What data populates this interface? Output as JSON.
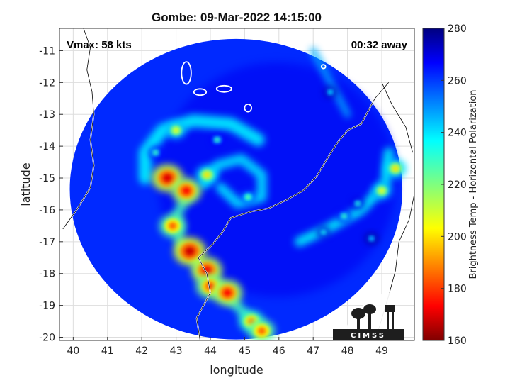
{
  "chart_data": {
    "type": "heatmap",
    "title": "Gombe: 09-Mar-2022 14:15:00",
    "xlabel": "longitude",
    "ylabel": "latitude",
    "xlim": [
      39.6,
      49.95
    ],
    "ylim": [
      -20.1,
      -10.3
    ],
    "xticks": [
      40,
      41,
      42,
      43,
      44,
      45,
      46,
      47,
      48,
      49
    ],
    "yticks": [
      -11,
      -12,
      -13,
      -14,
      -15,
      -16,
      -17,
      -18,
      -19,
      -20
    ],
    "grid": true,
    "annotations": {
      "vmax": "Vmax: 58 kts",
      "away": "00:32 away"
    },
    "colorbar": {
      "label": "Brightness Temp - Horizontal Polarization",
      "min": 160,
      "max": 280,
      "ticks": [
        160,
        180,
        200,
        220,
        240,
        260,
        280
      ]
    },
    "swath": {
      "center": [
        44.75,
        -15.35
      ],
      "radius_lon": 4.85,
      "radius_lat": 4.72,
      "background_value": 262
    },
    "features": [
      {
        "lon": 42.75,
        "lat": -15.0,
        "value": 170
      },
      {
        "lon": 43.3,
        "lat": -15.4,
        "value": 175
      },
      {
        "lon": 43.0,
        "lat": -13.5,
        "value": 205
      },
      {
        "lon": 42.4,
        "lat": -14.2,
        "value": 225
      },
      {
        "lon": 43.9,
        "lat": -14.9,
        "value": 200
      },
      {
        "lon": 44.2,
        "lat": -13.8,
        "value": 225
      },
      {
        "lon": 45.1,
        "lat": -15.6,
        "value": 220
      },
      {
        "lon": 42.9,
        "lat": -16.5,
        "value": 185
      },
      {
        "lon": 43.4,
        "lat": -17.3,
        "value": 168
      },
      {
        "lon": 43.9,
        "lat": -17.9,
        "value": 172
      },
      {
        "lon": 44.0,
        "lat": -18.4,
        "value": 180
      },
      {
        "lon": 44.5,
        "lat": -18.6,
        "value": 175
      },
      {
        "lon": 45.2,
        "lat": -19.5,
        "value": 190
      },
      {
        "lon": 45.5,
        "lat": -19.8,
        "value": 185
      },
      {
        "lon": 49.0,
        "lat": -15.4,
        "value": 205
      },
      {
        "lon": 49.4,
        "lat": -14.7,
        "value": 200
      },
      {
        "lon": 48.3,
        "lat": -15.8,
        "value": 230
      },
      {
        "lon": 47.9,
        "lat": -16.2,
        "value": 225
      },
      {
        "lon": 47.3,
        "lat": -16.7,
        "value": 232
      },
      {
        "lon": 47.5,
        "lat": -12.3,
        "value": 235
      },
      {
        "lon": 48.7,
        "lat": -16.9,
        "value": 238
      }
    ]
  },
  "logo": {
    "text": "CIMSS"
  },
  "colors": {
    "land_outline": "#ffffff",
    "background": "#ffffff"
  }
}
